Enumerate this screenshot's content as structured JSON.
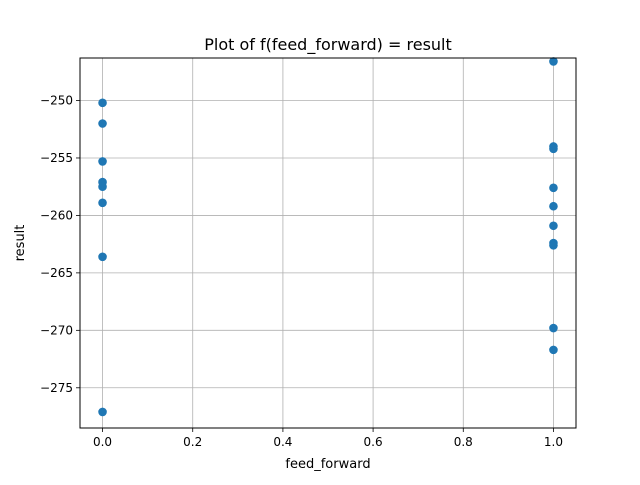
{
  "chart_data": {
    "type": "scatter",
    "title": "Plot of f(feed_forward) = result",
    "xlabel": "feed_forward",
    "ylabel": "result",
    "xlim": [
      -0.05,
      1.05
    ],
    "ylim": [
      -278.5,
      -246.3
    ],
    "x_ticks": [
      0.0,
      0.2,
      0.4,
      0.6,
      0.8,
      1.0
    ],
    "x_tick_labels": [
      "0.0",
      "0.2",
      "0.4",
      "0.6",
      "0.8",
      "1.0"
    ],
    "y_ticks": [
      -250,
      -255,
      -260,
      -265,
      -270,
      -275
    ],
    "y_tick_labels": [
      "−250",
      "−255",
      "−260",
      "−265",
      "−270",
      "−275"
    ],
    "grid": true,
    "marker_color": "#1f77b4",
    "points": [
      {
        "x": 0,
        "y": -250.2
      },
      {
        "x": 0,
        "y": -252.0
      },
      {
        "x": 0,
        "y": -255.3
      },
      {
        "x": 0,
        "y": -257.1
      },
      {
        "x": 0,
        "y": -257.5
      },
      {
        "x": 0,
        "y": -258.9
      },
      {
        "x": 0,
        "y": -263.6
      },
      {
        "x": 0,
        "y": -277.1
      },
      {
        "x": 1,
        "y": -246.6
      },
      {
        "x": 1,
        "y": -254.0
      },
      {
        "x": 1,
        "y": -254.2
      },
      {
        "x": 1,
        "y": -257.6
      },
      {
        "x": 1,
        "y": -259.2
      },
      {
        "x": 1,
        "y": -260.9
      },
      {
        "x": 1,
        "y": -262.4
      },
      {
        "x": 1,
        "y": -262.6
      },
      {
        "x": 1,
        "y": -269.8
      },
      {
        "x": 1,
        "y": -271.7
      }
    ]
  }
}
